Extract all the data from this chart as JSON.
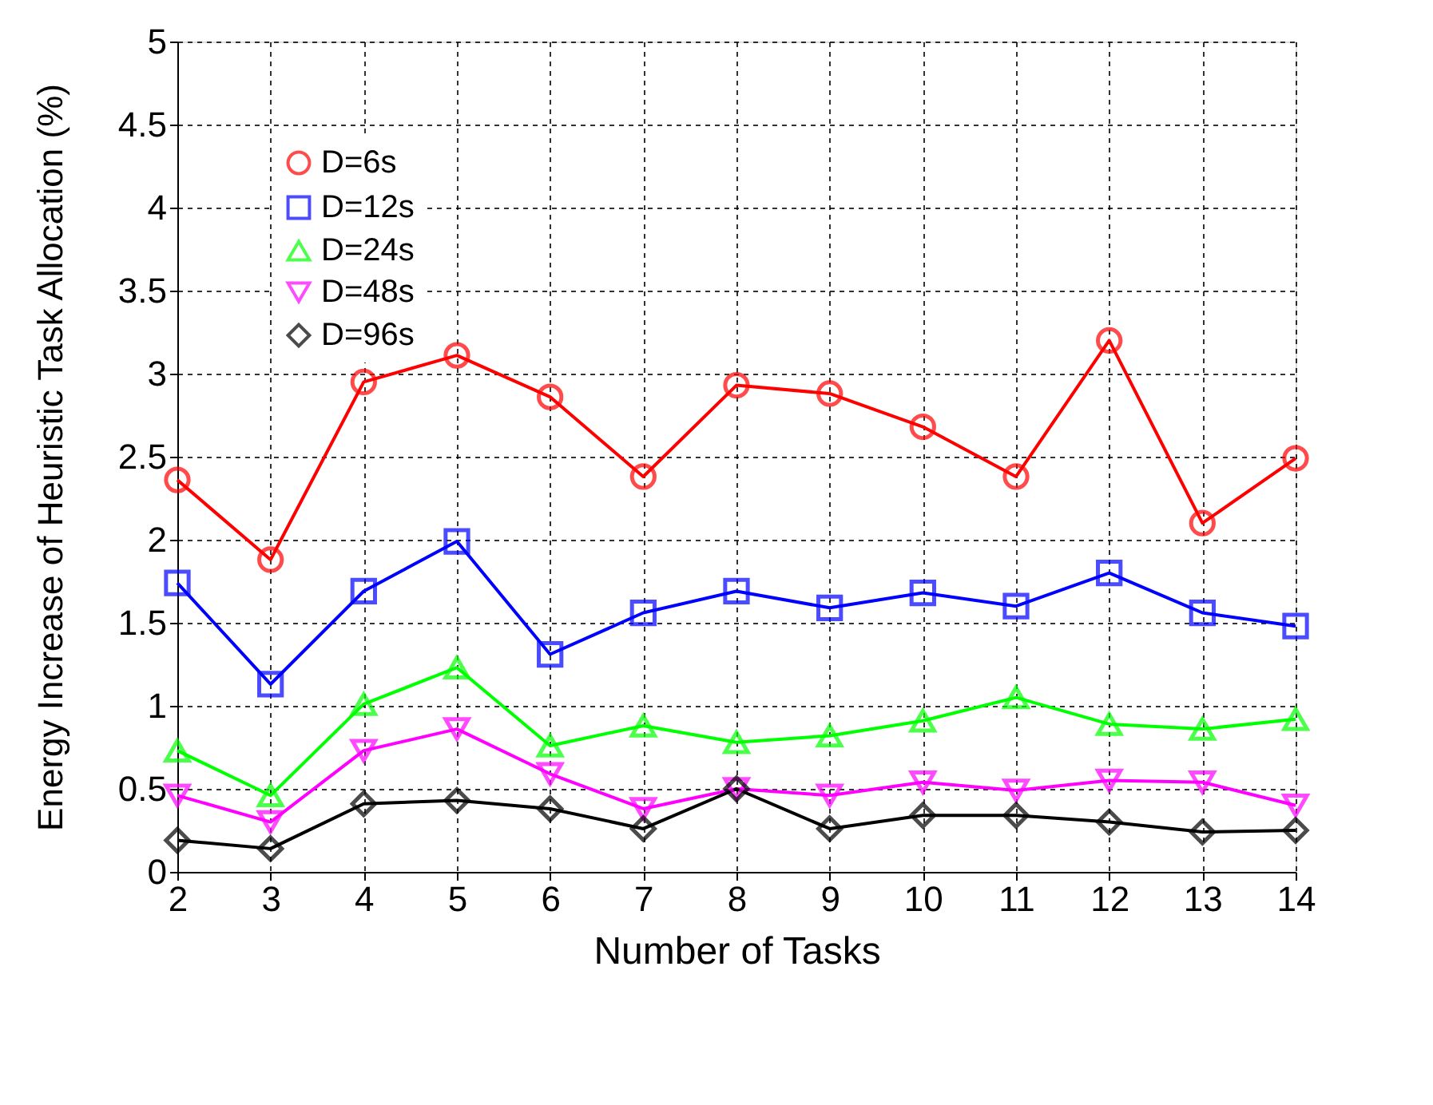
{
  "chart_data": {
    "type": "line",
    "xlabel": "Number of Tasks",
    "ylabel": "Energy Increase of Heuristic Task Allocation (%)",
    "x": [
      2,
      3,
      4,
      5,
      6,
      7,
      8,
      9,
      10,
      11,
      12,
      13,
      14
    ],
    "xlim": [
      2,
      14
    ],
    "xticks": [
      2,
      3,
      4,
      5,
      6,
      7,
      8,
      9,
      10,
      11,
      12,
      13,
      14
    ],
    "ylim": [
      0,
      5
    ],
    "yticks": [
      0,
      0.5,
      1,
      1.5,
      2,
      2.5,
      3,
      3.5,
      4,
      4.5,
      5
    ],
    "grid": true,
    "legend": "top left",
    "line_style": "solid",
    "series": [
      {
        "name": "D=6s",
        "color": "#ff0000",
        "marker": "circle",
        "values": [
          2.36,
          1.88,
          2.95,
          3.11,
          2.86,
          2.38,
          2.93,
          2.88,
          2.68,
          2.38,
          3.2,
          2.1,
          2.49
        ]
      },
      {
        "name": "D=12s",
        "color": "#0000ff",
        "marker": "square",
        "values": [
          1.74,
          1.13,
          1.69,
          1.99,
          1.31,
          1.56,
          1.69,
          1.59,
          1.68,
          1.6,
          1.8,
          1.56,
          1.48
        ]
      },
      {
        "name": "D=24s",
        "color": "#00ff00",
        "marker": "triangle",
        "values": [
          0.73,
          0.46,
          1.01,
          1.23,
          0.76,
          0.88,
          0.78,
          0.82,
          0.91,
          1.05,
          0.89,
          0.86,
          0.92
        ]
      },
      {
        "name": "D=48s",
        "color": "#ff00ff",
        "marker": "triangle-down",
        "values": [
          0.46,
          0.3,
          0.73,
          0.86,
          0.59,
          0.38,
          0.5,
          0.46,
          0.54,
          0.49,
          0.55,
          0.54,
          0.4
        ]
      },
      {
        "name": "D=96s",
        "color": "#000000",
        "marker": "diamond",
        "values": [
          0.19,
          0.14,
          0.41,
          0.43,
          0.38,
          0.26,
          0.5,
          0.26,
          0.34,
          0.34,
          0.3,
          0.24,
          0.25
        ]
      }
    ]
  }
}
